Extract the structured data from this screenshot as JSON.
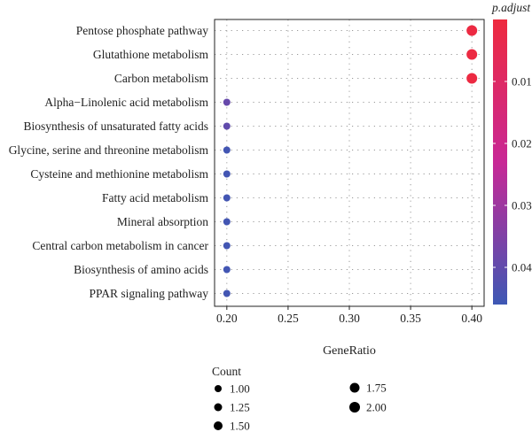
{
  "chart_data": {
    "type": "scatter",
    "title": "",
    "xlabel": "GeneRatio",
    "ylabel": "",
    "xlim": [
      0.19,
      0.41
    ],
    "xticks": [
      0.2,
      0.25,
      0.3,
      0.35,
      0.4
    ],
    "xtick_labels": [
      "0.20",
      "0.25",
      "0.30",
      "0.35",
      "0.40"
    ],
    "grid": true,
    "categories": [
      "Pentose phosphate pathway",
      "Glutathione metabolism",
      "Carbon metabolism",
      "Alpha−Linolenic acid metabolism",
      "Biosynthesis of unsaturated fatty acids",
      "Glycine, serine and threonine metabolism",
      "Cysteine and methionine metabolism",
      "Fatty acid metabolism",
      "Mineral absorption",
      "Central carbon metabolism in cancer",
      "Biosynthesis of amino acids",
      "PPAR signaling pathway"
    ],
    "gene_ratio": [
      0.4,
      0.4,
      0.4,
      0.2,
      0.2,
      0.2,
      0.2,
      0.2,
      0.2,
      0.2,
      0.2,
      0.2
    ],
    "count": [
      2,
      2,
      2,
      1,
      1,
      1,
      1,
      1,
      1,
      1,
      1,
      1
    ],
    "p_adjust": [
      0.001,
      0.001,
      0.001,
      0.039,
      0.04,
      0.045,
      0.045,
      0.045,
      0.045,
      0.045,
      0.045,
      0.045
    ],
    "color_legend": {
      "title": "p.adjust",
      "ticks": [
        0.01,
        0.02,
        0.03,
        0.04
      ],
      "tick_labels": [
        "0.01",
        "0.02",
        "0.03",
        "0.04"
      ],
      "range": [
        0.0,
        0.046
      ],
      "low_color": "#ee2a3e",
      "high_color": "#3d58b4",
      "placement": "right"
    },
    "size_legend": {
      "title": "Count",
      "values": [
        1.0,
        1.25,
        1.5,
        1.75,
        2.0
      ],
      "labels": [
        "1.00",
        "1.25",
        "1.50",
        "1.75",
        "2.00"
      ],
      "placement": "bottom"
    }
  }
}
